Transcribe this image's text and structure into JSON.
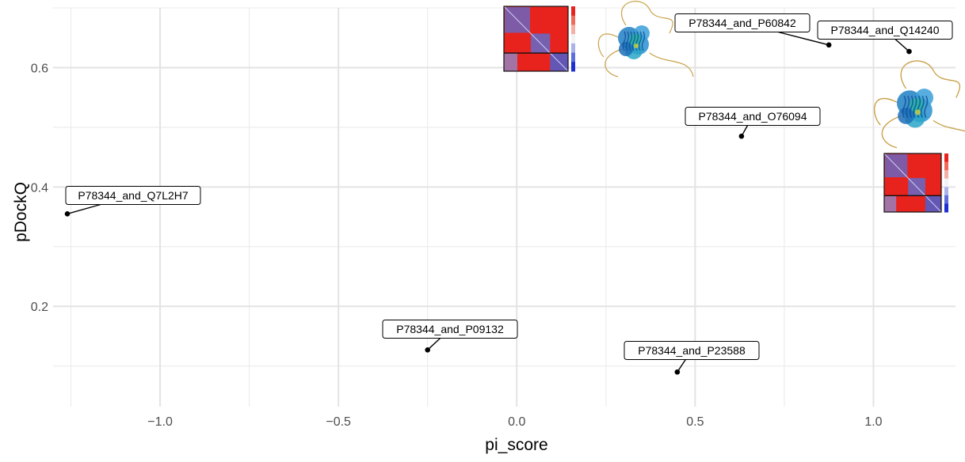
{
  "chart_data": {
    "type": "scatter",
    "title": "",
    "xlabel": "pi_score",
    "ylabel": "pDockQ",
    "xlim": [
      -1.3,
      1.23
    ],
    "ylim": [
      0.032,
      0.7
    ],
    "xticks": [
      -1.0,
      -0.5,
      0.0,
      0.5,
      1.0
    ],
    "xtick_labels": [
      "−1.0",
      "−0.5",
      "0.0",
      "0.5",
      "1.0"
    ],
    "yticks": [
      0.2,
      0.4,
      0.6
    ],
    "ytick_labels": [
      "0.2",
      "0.4",
      "0.6"
    ],
    "grid": true,
    "legend": "none",
    "points": [
      {
        "label": "P78344_and_Q7L2H7",
        "x": -1.26,
        "y": 0.355
      },
      {
        "label": "P78344_and_P09132",
        "x": -0.25,
        "y": 0.127
      },
      {
        "label": "P78344_and_P23588",
        "x": 0.45,
        "y": 0.09
      },
      {
        "label": "P78344_and_O76094",
        "x": 0.63,
        "y": 0.485
      },
      {
        "label": "P78344_and_P60842",
        "x": 0.875,
        "y": 0.638
      },
      {
        "label": "P78344_and_Q14240",
        "x": 1.1,
        "y": 0.627
      }
    ],
    "insets": [
      {
        "kind": "pae-heatmap",
        "near": "P78344_and_P60842"
      },
      {
        "kind": "structure-image",
        "near": "P78344_and_P60842"
      },
      {
        "kind": "structure-image",
        "near": "P78344_and_Q14240"
      },
      {
        "kind": "pae-heatmap",
        "near": "P78344_and_Q14240"
      }
    ]
  }
}
